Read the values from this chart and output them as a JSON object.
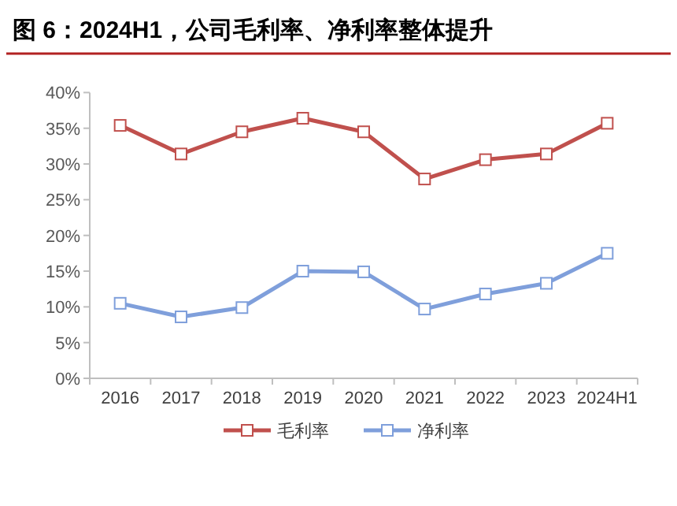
{
  "chart_data": {
    "type": "line",
    "title": "图 6：2024H1，公司毛利率、净利率整体提升",
    "categories": [
      "2016",
      "2017",
      "2018",
      "2019",
      "2020",
      "2021",
      "2022",
      "2023",
      "2024H1"
    ],
    "series": [
      {
        "name": "毛利率",
        "color": "#c0504d",
        "values": [
          35.4,
          31.4,
          34.5,
          36.4,
          34.5,
          27.9,
          30.6,
          31.4,
          35.7
        ]
      },
      {
        "name": "净利率",
        "color": "#7f9fdb",
        "values": [
          10.5,
          8.6,
          9.9,
          15.0,
          14.9,
          9.7,
          11.8,
          13.3,
          17.5
        ]
      }
    ],
    "ylim": [
      0,
      40
    ],
    "yticks": [
      {
        "value": 0,
        "label": "0%"
      },
      {
        "value": 5,
        "label": "5%"
      },
      {
        "value": 10,
        "label": "10%"
      },
      {
        "value": 15,
        "label": "15%"
      },
      {
        "value": 20,
        "label": "20%"
      },
      {
        "value": 25,
        "label": "25%"
      },
      {
        "value": 30,
        "label": "30%"
      },
      {
        "value": 35,
        "label": "35%"
      },
      {
        "value": 40,
        "label": "40%"
      }
    ],
    "marker": "square",
    "line_style": "solid",
    "legend": "bottom",
    "grid": false
  }
}
